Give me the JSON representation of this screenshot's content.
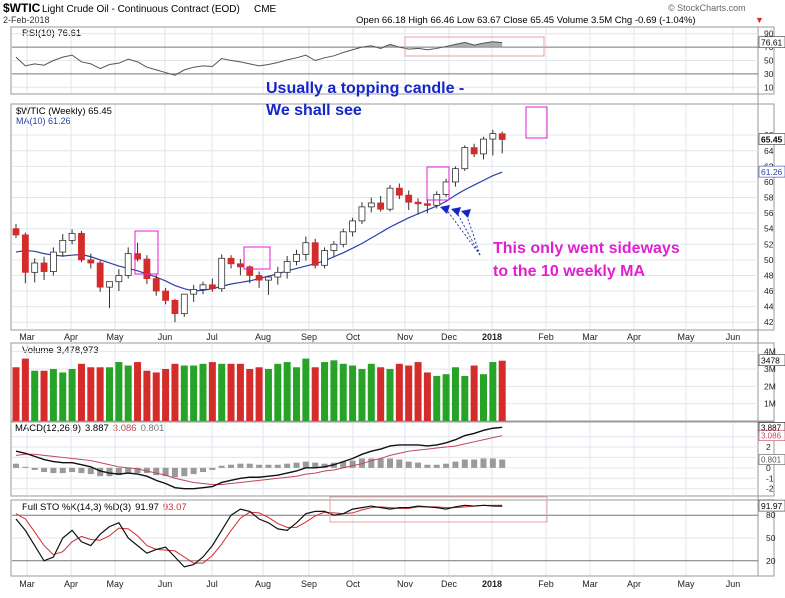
{
  "header": {
    "symbol": "$WTIC",
    "name": "Light Crude Oil - Continuous Contract (EOD)",
    "exchange": "CME",
    "date": "2-Feb-2018",
    "ohlc": "Open 66.18  High 66.46  Low 63.67  Close 65.45  Volume 3.5M  Chg -0.69 (-1.04%)",
    "chg_arrow": "▼",
    "watermark": "© StockCharts.com"
  },
  "months": [
    "Mar",
    "Apr",
    "May",
    "Jun",
    "Jul",
    "Aug",
    "Sep",
    "Oct",
    "Nov",
    "Dec",
    "2018",
    "Feb",
    "Mar",
    "Apr",
    "May",
    "Jun"
  ],
  "annotations": {
    "top_line1": "Usually a topping candle -",
    "top_line2": "We shall see",
    "mid_line1": "This only went sideways",
    "mid_line2": "to the 10 weekly MA"
  },
  "colors": {
    "up": "#27a327",
    "down": "#d42b2b",
    "annotation_blue": "#1526c8",
    "annotation_magenta": "#e020d0",
    "ma": "#2b3fa8",
    "frame": "#9a9a9a",
    "grid": "#e2e6ee"
  },
  "chart_data": [
    {
      "type": "candlestick",
      "title": "$WTIC (Weekly) 65.45",
      "ma_legend": "MA(10) 61.26",
      "last_price": "65.45",
      "last_ma": "61.26",
      "y_ticks": [
        "42",
        "44",
        "46",
        "48",
        "50",
        "52",
        "54",
        "56",
        "58",
        "60",
        "62",
        "64",
        "66"
      ],
      "ylim": [
        41,
        70
      ],
      "candles": [
        {
          "o": 54.0,
          "h": 54.6,
          "l": 52.8,
          "c": 53.2
        },
        {
          "o": 53.2,
          "h": 53.5,
          "l": 47.0,
          "c": 48.4
        },
        {
          "o": 48.4,
          "h": 50.2,
          "l": 47.1,
          "c": 49.6
        },
        {
          "o": 49.6,
          "h": 50.4,
          "l": 47.4,
          "c": 48.5
        },
        {
          "o": 48.5,
          "h": 51.6,
          "l": 48.0,
          "c": 51.0
        },
        {
          "o": 51.0,
          "h": 53.3,
          "l": 50.4,
          "c": 52.5
        },
        {
          "o": 52.5,
          "h": 53.9,
          "l": 52.0,
          "c": 53.4
        },
        {
          "o": 53.4,
          "h": 53.7,
          "l": 49.7,
          "c": 50.0
        },
        {
          "o": 50.0,
          "h": 50.8,
          "l": 48.9,
          "c": 49.6
        },
        {
          "o": 49.6,
          "h": 49.9,
          "l": 45.9,
          "c": 46.5
        },
        {
          "o": 46.5,
          "h": 47.1,
          "l": 43.8,
          "c": 47.2
        },
        {
          "o": 47.2,
          "h": 48.8,
          "l": 46.0,
          "c": 48.0
        },
        {
          "o": 48.0,
          "h": 51.6,
          "l": 47.6,
          "c": 50.8
        },
        {
          "o": 50.8,
          "h": 52.2,
          "l": 49.8,
          "c": 50.1
        },
        {
          "o": 50.1,
          "h": 50.6,
          "l": 46.9,
          "c": 47.6
        },
        {
          "o": 47.6,
          "h": 48.1,
          "l": 45.4,
          "c": 46.0
        },
        {
          "o": 46.0,
          "h": 46.4,
          "l": 44.3,
          "c": 44.8
        },
        {
          "o": 44.8,
          "h": 45.0,
          "l": 42.0,
          "c": 43.1
        },
        {
          "o": 43.1,
          "h": 45.4,
          "l": 42.7,
          "c": 45.6
        },
        {
          "o": 45.6,
          "h": 46.8,
          "l": 44.6,
          "c": 46.2
        },
        {
          "o": 46.2,
          "h": 47.2,
          "l": 45.6,
          "c": 46.8
        },
        {
          "o": 46.8,
          "h": 47.6,
          "l": 45.9,
          "c": 46.3
        },
        {
          "o": 46.3,
          "h": 50.7,
          "l": 45.9,
          "c": 50.2
        },
        {
          "o": 50.2,
          "h": 50.6,
          "l": 48.9,
          "c": 49.5
        },
        {
          "o": 49.5,
          "h": 50.1,
          "l": 48.0,
          "c": 49.1
        },
        {
          "o": 49.1,
          "h": 49.3,
          "l": 47.0,
          "c": 48.0
        },
        {
          "o": 48.0,
          "h": 48.5,
          "l": 46.4,
          "c": 47.4
        },
        {
          "o": 47.4,
          "h": 48.0,
          "l": 45.5,
          "c": 47.8
        },
        {
          "o": 47.8,
          "h": 49.1,
          "l": 46.8,
          "c": 48.4
        },
        {
          "o": 48.4,
          "h": 50.5,
          "l": 47.6,
          "c": 49.8
        },
        {
          "o": 49.8,
          "h": 51.3,
          "l": 49.3,
          "c": 50.7
        },
        {
          "o": 50.7,
          "h": 53.0,
          "l": 49.9,
          "c": 52.2
        },
        {
          "o": 52.2,
          "h": 52.7,
          "l": 48.9,
          "c": 49.3
        },
        {
          "o": 49.3,
          "h": 51.6,
          "l": 48.9,
          "c": 51.2
        },
        {
          "o": 51.2,
          "h": 52.4,
          "l": 50.3,
          "c": 52.0
        },
        {
          "o": 52.0,
          "h": 54.0,
          "l": 51.6,
          "c": 53.6
        },
        {
          "o": 53.6,
          "h": 55.4,
          "l": 53.0,
          "c": 55.0
        },
        {
          "o": 55.0,
          "h": 57.4,
          "l": 54.6,
          "c": 56.8
        },
        {
          "o": 56.8,
          "h": 58.0,
          "l": 56.1,
          "c": 57.3
        },
        {
          "o": 57.3,
          "h": 58.2,
          "l": 56.2,
          "c": 56.5
        },
        {
          "o": 56.5,
          "h": 59.6,
          "l": 56.2,
          "c": 59.2
        },
        {
          "o": 59.2,
          "h": 59.8,
          "l": 57.8,
          "c": 58.3
        },
        {
          "o": 58.3,
          "h": 58.9,
          "l": 56.4,
          "c": 57.4
        },
        {
          "o": 57.4,
          "h": 57.9,
          "l": 55.8,
          "c": 57.2
        },
        {
          "o": 57.2,
          "h": 57.8,
          "l": 56.0,
          "c": 57.0
        },
        {
          "o": 57.0,
          "h": 58.8,
          "l": 56.6,
          "c": 58.4
        },
        {
          "o": 58.4,
          "h": 60.4,
          "l": 58.1,
          "c": 60.0
        },
        {
          "o": 60.0,
          "h": 62.0,
          "l": 59.4,
          "c": 61.7
        },
        {
          "o": 61.7,
          "h": 64.7,
          "l": 61.4,
          "c": 64.4
        },
        {
          "o": 64.4,
          "h": 64.9,
          "l": 63.2,
          "c": 63.6
        },
        {
          "o": 63.6,
          "h": 65.8,
          "l": 62.9,
          "c": 65.5
        },
        {
          "o": 65.5,
          "h": 66.7,
          "l": 63.4,
          "c": 66.2
        },
        {
          "o": 66.18,
          "h": 66.46,
          "l": 63.67,
          "c": 65.45
        }
      ],
      "ma10": [
        51.0,
        51.2,
        51.1,
        50.8,
        50.6,
        50.5,
        50.6,
        50.7,
        50.4,
        50.0,
        49.6,
        49.2,
        48.9,
        48.6,
        48.2,
        47.8,
        47.3,
        46.7,
        46.3,
        46.0,
        46.1,
        46.3,
        46.6,
        46.9,
        47.1,
        47.3,
        47.6,
        47.9,
        48.2,
        48.6,
        48.9,
        49.2,
        49.5,
        49.9,
        50.4,
        50.9,
        51.5,
        52.1,
        52.8,
        53.5,
        54.2,
        54.8,
        55.4,
        55.9,
        56.4,
        56.9,
        57.5,
        58.3,
        59.0,
        59.6,
        60.2,
        60.8,
        61.26
      ]
    },
    {
      "type": "line",
      "title": "RSI(10) 76.61",
      "series_name": "RSI(10)",
      "y_ticks": [
        "90",
        "70",
        "50",
        "30",
        "10"
      ],
      "last_value": "76.61",
      "ylim": [
        0,
        100
      ],
      "values": [
        55,
        42,
        45,
        43,
        50,
        55,
        58,
        48,
        45,
        38,
        44,
        46,
        52,
        48,
        40,
        36,
        32,
        28,
        36,
        40,
        42,
        41,
        53,
        50,
        48,
        45,
        42,
        44,
        47,
        51,
        54,
        58,
        50,
        54,
        57,
        62,
        66,
        70,
        72,
        68,
        74,
        70,
        67,
        68,
        66,
        68,
        71,
        74,
        77,
        73,
        76,
        78,
        76.61
      ]
    },
    {
      "type": "bar",
      "title": "Volume 3,478,973",
      "series_name": "Volume",
      "y_ticks": [
        "4M",
        "3M",
        "2M",
        "1M"
      ],
      "last_value": "3478",
      "ylim": [
        0,
        4500000
      ],
      "values": [
        3100000,
        3600000,
        2900000,
        2900000,
        3000000,
        2800000,
        3000000,
        3300000,
        3100000,
        3100000,
        3100000,
        3400000,
        3200000,
        3400000,
        2900000,
        2800000,
        3000000,
        3300000,
        3200000,
        3200000,
        3300000,
        3400000,
        3300000,
        3300000,
        3300000,
        3000000,
        3100000,
        3000000,
        3300000,
        3400000,
        3100000,
        3600000,
        3100000,
        3400000,
        3500000,
        3300000,
        3200000,
        3000000,
        3300000,
        3100000,
        3000000,
        3300000,
        3200000,
        3400000,
        2800000,
        2600000,
        2700000,
        3100000,
        2600000,
        3200000,
        2700000,
        3400000,
        3478973
      ]
    },
    {
      "type": "line",
      "title": "MACD(12,26,9)",
      "series": [
        {
          "name": "MACD(12,26,9)",
          "label": "3.887",
          "values": [
            1.6,
            1.4,
            1.1,
            0.8,
            0.6,
            0.5,
            0.5,
            0.3,
            0.1,
            -0.3,
            -0.5,
            -0.6,
            -0.5,
            -0.6,
            -0.8,
            -1.2,
            -1.5,
            -1.9,
            -2.0,
            -2.0,
            -1.9,
            -1.8,
            -1.4,
            -1.2,
            -1.0,
            -0.9,
            -0.9,
            -0.8,
            -0.7,
            -0.5,
            -0.3,
            0.0,
            0.0,
            0.1,
            0.3,
            0.6,
            0.9,
            1.3,
            1.6,
            1.8,
            2.1,
            2.2,
            2.2,
            2.2,
            2.1,
            2.2,
            2.4,
            2.7,
            3.1,
            3.3,
            3.6,
            3.8,
            3.887
          ]
        },
        {
          "name": "Signal",
          "label": "3.086",
          "values": [
            1.2,
            1.3,
            1.3,
            1.2,
            1.1,
            1.0,
            0.9,
            0.8,
            0.7,
            0.5,
            0.3,
            0.1,
            0.0,
            -0.1,
            -0.3,
            -0.5,
            -0.7,
            -1.0,
            -1.2,
            -1.4,
            -1.5,
            -1.6,
            -1.6,
            -1.5,
            -1.4,
            -1.3,
            -1.2,
            -1.1,
            -1.0,
            -0.9,
            -0.8,
            -0.6,
            -0.5,
            -0.3,
            -0.2,
            0.0,
            0.2,
            0.4,
            0.7,
            0.9,
            1.2,
            1.4,
            1.6,
            1.7,
            1.8,
            1.9,
            2.0,
            2.1,
            2.3,
            2.5,
            2.7,
            2.9,
            3.086
          ]
        },
        {
          "name": "Histogram",
          "label": "0.801",
          "values": [
            0.4,
            0.1,
            -0.2,
            -0.4,
            -0.5,
            -0.5,
            -0.4,
            -0.5,
            -0.6,
            -0.8,
            -0.8,
            -0.7,
            -0.5,
            -0.5,
            -0.5,
            -0.7,
            -0.8,
            -0.9,
            -0.8,
            -0.6,
            -0.4,
            -0.2,
            0.2,
            0.3,
            0.4,
            0.4,
            0.3,
            0.3,
            0.3,
            0.4,
            0.5,
            0.6,
            0.5,
            0.4,
            0.5,
            0.6,
            0.7,
            0.9,
            0.9,
            0.9,
            0.9,
            0.8,
            0.6,
            0.5,
            0.3,
            0.3,
            0.4,
            0.6,
            0.8,
            0.8,
            0.9,
            0.9,
            0.801
          ]
        }
      ],
      "y_ticks": [
        "3",
        "2",
        "1",
        "0",
        "-1",
        "-2"
      ],
      "ylim": [
        -2.7,
        4.4
      ]
    },
    {
      "type": "line",
      "title": "Full STO %K(14,3) %D(3)",
      "series": [
        {
          "name": "%K(14,3)",
          "label": "91.97",
          "values": [
            75,
            60,
            40,
            20,
            25,
            50,
            60,
            45,
            40,
            55,
            65,
            70,
            50,
            40,
            30,
            35,
            38,
            25,
            12,
            15,
            25,
            40,
            60,
            80,
            88,
            85,
            75,
            70,
            62,
            60,
            70,
            82,
            85,
            85,
            80,
            82,
            88,
            90,
            92,
            90,
            88,
            90,
            90,
            92,
            91,
            90,
            88,
            91,
            93,
            92,
            93,
            92,
            91.97
          ]
        },
        {
          "name": "%D(3)",
          "label": "93.07",
          "values": [
            82,
            75,
            58,
            40,
            28,
            32,
            45,
            52,
            48,
            47,
            53,
            63,
            62,
            53,
            40,
            35,
            34,
            33,
            25,
            17,
            17,
            27,
            42,
            60,
            76,
            84,
            83,
            77,
            69,
            64,
            64,
            71,
            79,
            84,
            83,
            82,
            83,
            87,
            90,
            91,
            90,
            89,
            89,
            91,
            91,
            91,
            90,
            90,
            91,
            92,
            93,
            93,
            93.07
          ]
        }
      ],
      "y_ticks": [
        "80",
        "50",
        "20"
      ],
      "ylim": [
        0,
        100
      ]
    }
  ]
}
